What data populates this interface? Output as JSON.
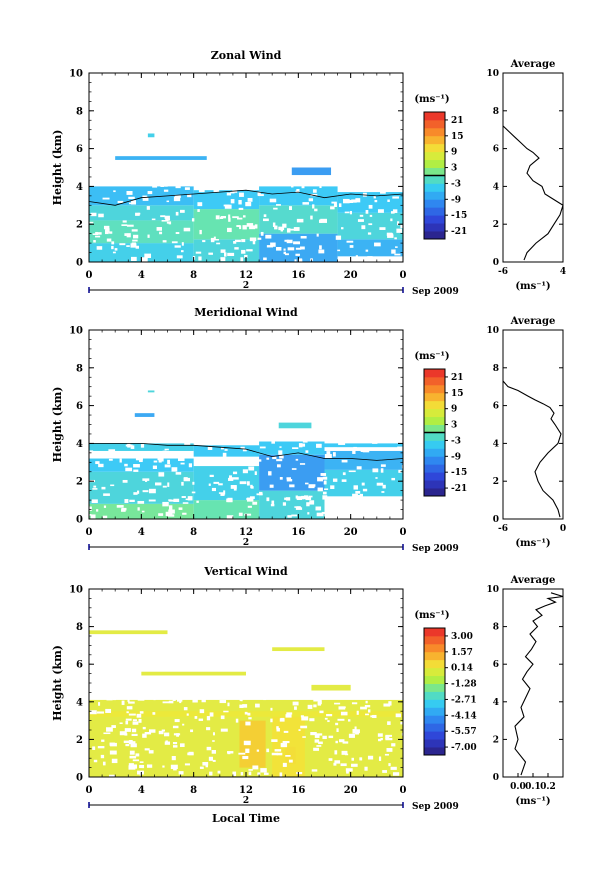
{
  "date_label": "Sep 2009",
  "xlabel_bottom": "Local Time",
  "day_marker": "2",
  "unit_label": "(ms⁻¹)",
  "chart_data": [
    {
      "type": "heatmap",
      "title": "Zonal Wind",
      "ylabel": "Height (km)",
      "xlabel": "Local Time",
      "xlim": [
        0,
        24
      ],
      "ylim": [
        0,
        10
      ],
      "xticks": [
        "0",
        "4",
        "8",
        "12",
        "16",
        "20",
        "0"
      ],
      "yticks": [
        "0",
        "2",
        "4",
        "6",
        "8",
        "10"
      ],
      "colorbar": {
        "unit": "(ms⁻¹)",
        "ticks": [
          "21",
          "15",
          "9",
          "3",
          "-3",
          "-9",
          "-15",
          "-21"
        ],
        "min": -24,
        "max": 24
      },
      "bands": [
        {
          "x": [
            0.0,
            8.0
          ],
          "y": [
            0.0,
            1.0
          ],
          "v": -4
        },
        {
          "x": [
            0.0,
            8.0
          ],
          "y": [
            1.0,
            2.2
          ],
          "v": -1
        },
        {
          "x": [
            0.0,
            8.0
          ],
          "y": [
            2.2,
            3.0
          ],
          "v": -3
        },
        {
          "x": [
            0.0,
            8.0
          ],
          "y": [
            3.0,
            4.0
          ],
          "v": -6
        },
        {
          "x": [
            8.0,
            13.0
          ],
          "y": [
            0.0,
            1.2
          ],
          "v": -3
        },
        {
          "x": [
            8.0,
            13.0
          ],
          "y": [
            1.2,
            2.8
          ],
          "v": 0
        },
        {
          "x": [
            8.0,
            13.0
          ],
          "y": [
            2.8,
            3.8
          ],
          "v": -5
        },
        {
          "x": [
            13.0,
            19.0
          ],
          "y": [
            0.0,
            1.5
          ],
          "v": -8
        },
        {
          "x": [
            13.0,
            19.0
          ],
          "y": [
            1.5,
            3.0
          ],
          "v": -2
        },
        {
          "x": [
            13.0,
            19.0
          ],
          "y": [
            3.0,
            4.0
          ],
          "v": -5
        },
        {
          "x": [
            15.5,
            18.5
          ],
          "y": [
            4.6,
            5.0
          ],
          "v": -9
        },
        {
          "x": [
            19.0,
            24.0
          ],
          "y": [
            0.3,
            1.2
          ],
          "v": -7
        },
        {
          "x": [
            19.0,
            24.0
          ],
          "y": [
            1.2,
            2.6
          ],
          "v": -3
        },
        {
          "x": [
            19.0,
            24.0
          ],
          "y": [
            2.6,
            3.7
          ],
          "v": -5
        },
        {
          "x": [
            2.0,
            9.0
          ],
          "y": [
            5.4,
            5.6
          ],
          "v": -7
        },
        {
          "x": [
            4.5,
            5.0
          ],
          "y": [
            6.6,
            6.8
          ],
          "v": -4
        }
      ],
      "contour_zero": [
        [
          0.0,
          3.2
        ],
        [
          2,
          3.0
        ],
        [
          4,
          3.4
        ],
        [
          6,
          3.5
        ],
        [
          8,
          3.6
        ],
        [
          10,
          3.7
        ],
        [
          12,
          3.8
        ],
        [
          14,
          3.6
        ],
        [
          16,
          3.7
        ],
        [
          18,
          3.4
        ],
        [
          20,
          3.6
        ],
        [
          22,
          3.5
        ],
        [
          24,
          3.6
        ]
      ],
      "average_profile": {
        "title": "Average",
        "xlabel": "(ms⁻¹)",
        "xlim": [
          -6,
          4
        ],
        "xticks": [
          "-6",
          "4"
        ],
        "ylim": [
          0,
          10
        ],
        "yticks": [
          "0",
          "2",
          "4",
          "6",
          "8",
          "10"
        ],
        "x": [
          -2.5,
          -2.0,
          -0.5,
          1.5,
          2.5,
          3.5,
          4.0,
          2.5,
          1.0,
          0.5,
          -1.0,
          -2.0,
          -1.5,
          0.0,
          -1.0,
          -2.0,
          -3.0,
          -4.0,
          -5.0,
          -6.0
        ],
        "y": [
          0.1,
          0.5,
          1.0,
          1.5,
          2.0,
          2.5,
          3.0,
          3.3,
          3.6,
          4.0,
          4.3,
          4.7,
          5.1,
          5.5,
          5.8,
          6.0,
          6.3,
          6.6,
          6.9,
          7.2
        ]
      }
    },
    {
      "type": "heatmap",
      "title": "Meridional Wind",
      "ylabel": "Height (km)",
      "xlabel": "Local Time",
      "xlim": [
        0,
        24
      ],
      "ylim": [
        0,
        10
      ],
      "xticks": [
        "0",
        "4",
        "8",
        "12",
        "16",
        "20",
        "0"
      ],
      "yticks": [
        "0",
        "2",
        "4",
        "6",
        "8",
        "10"
      ],
      "colorbar": {
        "unit": "(ms⁻¹)",
        "ticks": [
          "21",
          "15",
          "9",
          "3",
          "-3",
          "-9",
          "-15",
          "-21"
        ],
        "min": -24,
        "max": 24
      },
      "bands": [
        {
          "x": [
            0.0,
            8.0
          ],
          "y": [
            0.0,
            0.8
          ],
          "v": 1
        },
        {
          "x": [
            0.0,
            8.0
          ],
          "y": [
            0.8,
            2.5
          ],
          "v": -3
        },
        {
          "x": [
            0.0,
            8.0
          ],
          "y": [
            2.5,
            3.2
          ],
          "v": -5
        },
        {
          "x": [
            0.0,
            8.0
          ],
          "y": [
            3.6,
            4.0
          ],
          "v": -4
        },
        {
          "x": [
            8.0,
            13.0
          ],
          "y": [
            0.0,
            1.0
          ],
          "v": 0
        },
        {
          "x": [
            8.0,
            13.0
          ],
          "y": [
            1.0,
            2.8
          ],
          "v": -4
        },
        {
          "x": [
            8.0,
            13.0
          ],
          "y": [
            3.3,
            3.9
          ],
          "v": -5
        },
        {
          "x": [
            13.0,
            18.0
          ],
          "y": [
            0.0,
            1.5
          ],
          "v": -3
        },
        {
          "x": [
            13.0,
            18.0
          ],
          "y": [
            1.5,
            3.4
          ],
          "v": -9
        },
        {
          "x": [
            13.0,
            18.0
          ],
          "y": [
            3.4,
            4.1
          ],
          "v": -5
        },
        {
          "x": [
            18.0,
            24.0
          ],
          "y": [
            1.2,
            2.6
          ],
          "v": -4
        },
        {
          "x": [
            18.0,
            24.0
          ],
          "y": [
            2.6,
            3.6
          ],
          "v": -7
        },
        {
          "x": [
            18.0,
            24.0
          ],
          "y": [
            3.8,
            4.0
          ],
          "v": -5
        },
        {
          "x": [
            14.5,
            17.0
          ],
          "y": [
            4.8,
            5.1
          ],
          "v": -3
        },
        {
          "x": [
            3.5,
            5.0
          ],
          "y": [
            5.4,
            5.6
          ],
          "v": -8
        },
        {
          "x": [
            4.5,
            5.0
          ],
          "y": [
            6.7,
            6.8
          ],
          "v": -3
        }
      ],
      "contour_zero": [
        [
          0.0,
          4.0
        ],
        [
          2,
          4.0
        ],
        [
          4,
          4.0
        ],
        [
          6,
          3.9
        ],
        [
          8,
          3.9
        ],
        [
          10,
          3.8
        ],
        [
          12,
          3.7
        ],
        [
          14,
          3.3
        ],
        [
          16,
          3.5
        ],
        [
          18,
          3.2
        ],
        [
          20,
          3.2
        ],
        [
          22,
          3.1
        ],
        [
          24,
          3.2
        ]
      ],
      "average_profile": {
        "title": "Average",
        "xlabel": "(ms⁻¹)",
        "xlim": [
          -6,
          0
        ],
        "xticks": [
          "-6",
          "0"
        ],
        "ylim": [
          0,
          10
        ],
        "yticks": [
          "0",
          "2",
          "4",
          "6",
          "8",
          "10"
        ],
        "x": [
          -0.3,
          -0.5,
          -1.0,
          -2.0,
          -2.5,
          -2.8,
          -2.3,
          -1.5,
          -0.5,
          -0.2,
          -0.8,
          -1.2,
          -0.9,
          -1.3,
          -2.0,
          -2.8,
          -3.5,
          -4.5,
          -5.5,
          -6.0
        ],
        "y": [
          0.1,
          0.5,
          1.0,
          1.5,
          2.0,
          2.5,
          3.0,
          3.5,
          4.0,
          4.5,
          5.0,
          5.3,
          5.6,
          5.9,
          6.1,
          6.3,
          6.5,
          6.8,
          7.0,
          7.3
        ]
      }
    },
    {
      "type": "heatmap",
      "title": "Vertical Wind",
      "ylabel": "Height (km)",
      "xlabel": "Local Time",
      "xlim": [
        0,
        24
      ],
      "ylim": [
        0,
        10
      ],
      "xticks": [
        "0",
        "4",
        "8",
        "12",
        "16",
        "20",
        "0"
      ],
      "yticks": [
        "0",
        "2",
        "4",
        "6",
        "8",
        "10"
      ],
      "colorbar": {
        "unit": "(ms⁻¹)",
        "ticks": [
          "3.00",
          "1.57",
          "0.14",
          "-1.28",
          "-2.71",
          "-4.14",
          "-5.57",
          "-7.00"
        ],
        "min": -8.0,
        "max": 4.0
      },
      "bands": [
        {
          "x": [
            0.0,
            24.0
          ],
          "y": [
            0.0,
            4.1
          ],
          "v": 0.1
        },
        {
          "x": [
            0.0,
            24.0
          ],
          "y": [
            3.2,
            3.5
          ],
          "v": 0.3
        },
        {
          "x": [
            11.5,
            13.5
          ],
          "y": [
            0.5,
            3.0
          ],
          "v": 0.9
        },
        {
          "x": [
            15.0,
            15.8
          ],
          "y": [
            0.7,
            1.6
          ],
          "v": 2.2
        },
        {
          "x": [
            14.0,
            16.5
          ],
          "y": [
            0.0,
            3.2
          ],
          "v": 0.5
        },
        {
          "x": [
            0.0,
            6.0
          ],
          "y": [
            7.6,
            7.8
          ],
          "v": 0.1
        },
        {
          "x": [
            4.0,
            12.0
          ],
          "y": [
            5.4,
            5.6
          ],
          "v": 0.1
        },
        {
          "x": [
            17.0,
            20.0
          ],
          "y": [
            4.6,
            4.9
          ],
          "v": 0.1
        },
        {
          "x": [
            14.0,
            18.0
          ],
          "y": [
            6.7,
            6.9
          ],
          "v": 0.1
        }
      ],
      "average_profile": {
        "title": "Average",
        "xlabel": "(ms⁻¹)",
        "xlim": [
          -0.1,
          0.3
        ],
        "xticks": [
          "0.0",
          "0.1",
          "0.2"
        ],
        "ylim": [
          0,
          10
        ],
        "yticks": [
          "0",
          "2",
          "4",
          "6",
          "8",
          "10"
        ],
        "x": [
          0.02,
          0.05,
          -0.02,
          0.0,
          -0.02,
          0.04,
          0.02,
          0.05,
          0.08,
          0.03,
          0.06,
          0.1,
          0.05,
          0.09,
          0.12,
          0.08,
          0.13,
          0.1,
          0.16,
          0.12,
          0.18,
          0.25,
          0.2,
          0.3,
          0.22
        ],
        "y": [
          0.1,
          0.8,
          1.5,
          2.0,
          2.7,
          3.2,
          3.7,
          4.2,
          4.7,
          5.2,
          5.6,
          6.0,
          6.4,
          6.8,
          7.2,
          7.6,
          8.0,
          8.3,
          8.6,
          8.9,
          9.1,
          9.3,
          9.5,
          9.6,
          9.8
        ]
      }
    }
  ]
}
